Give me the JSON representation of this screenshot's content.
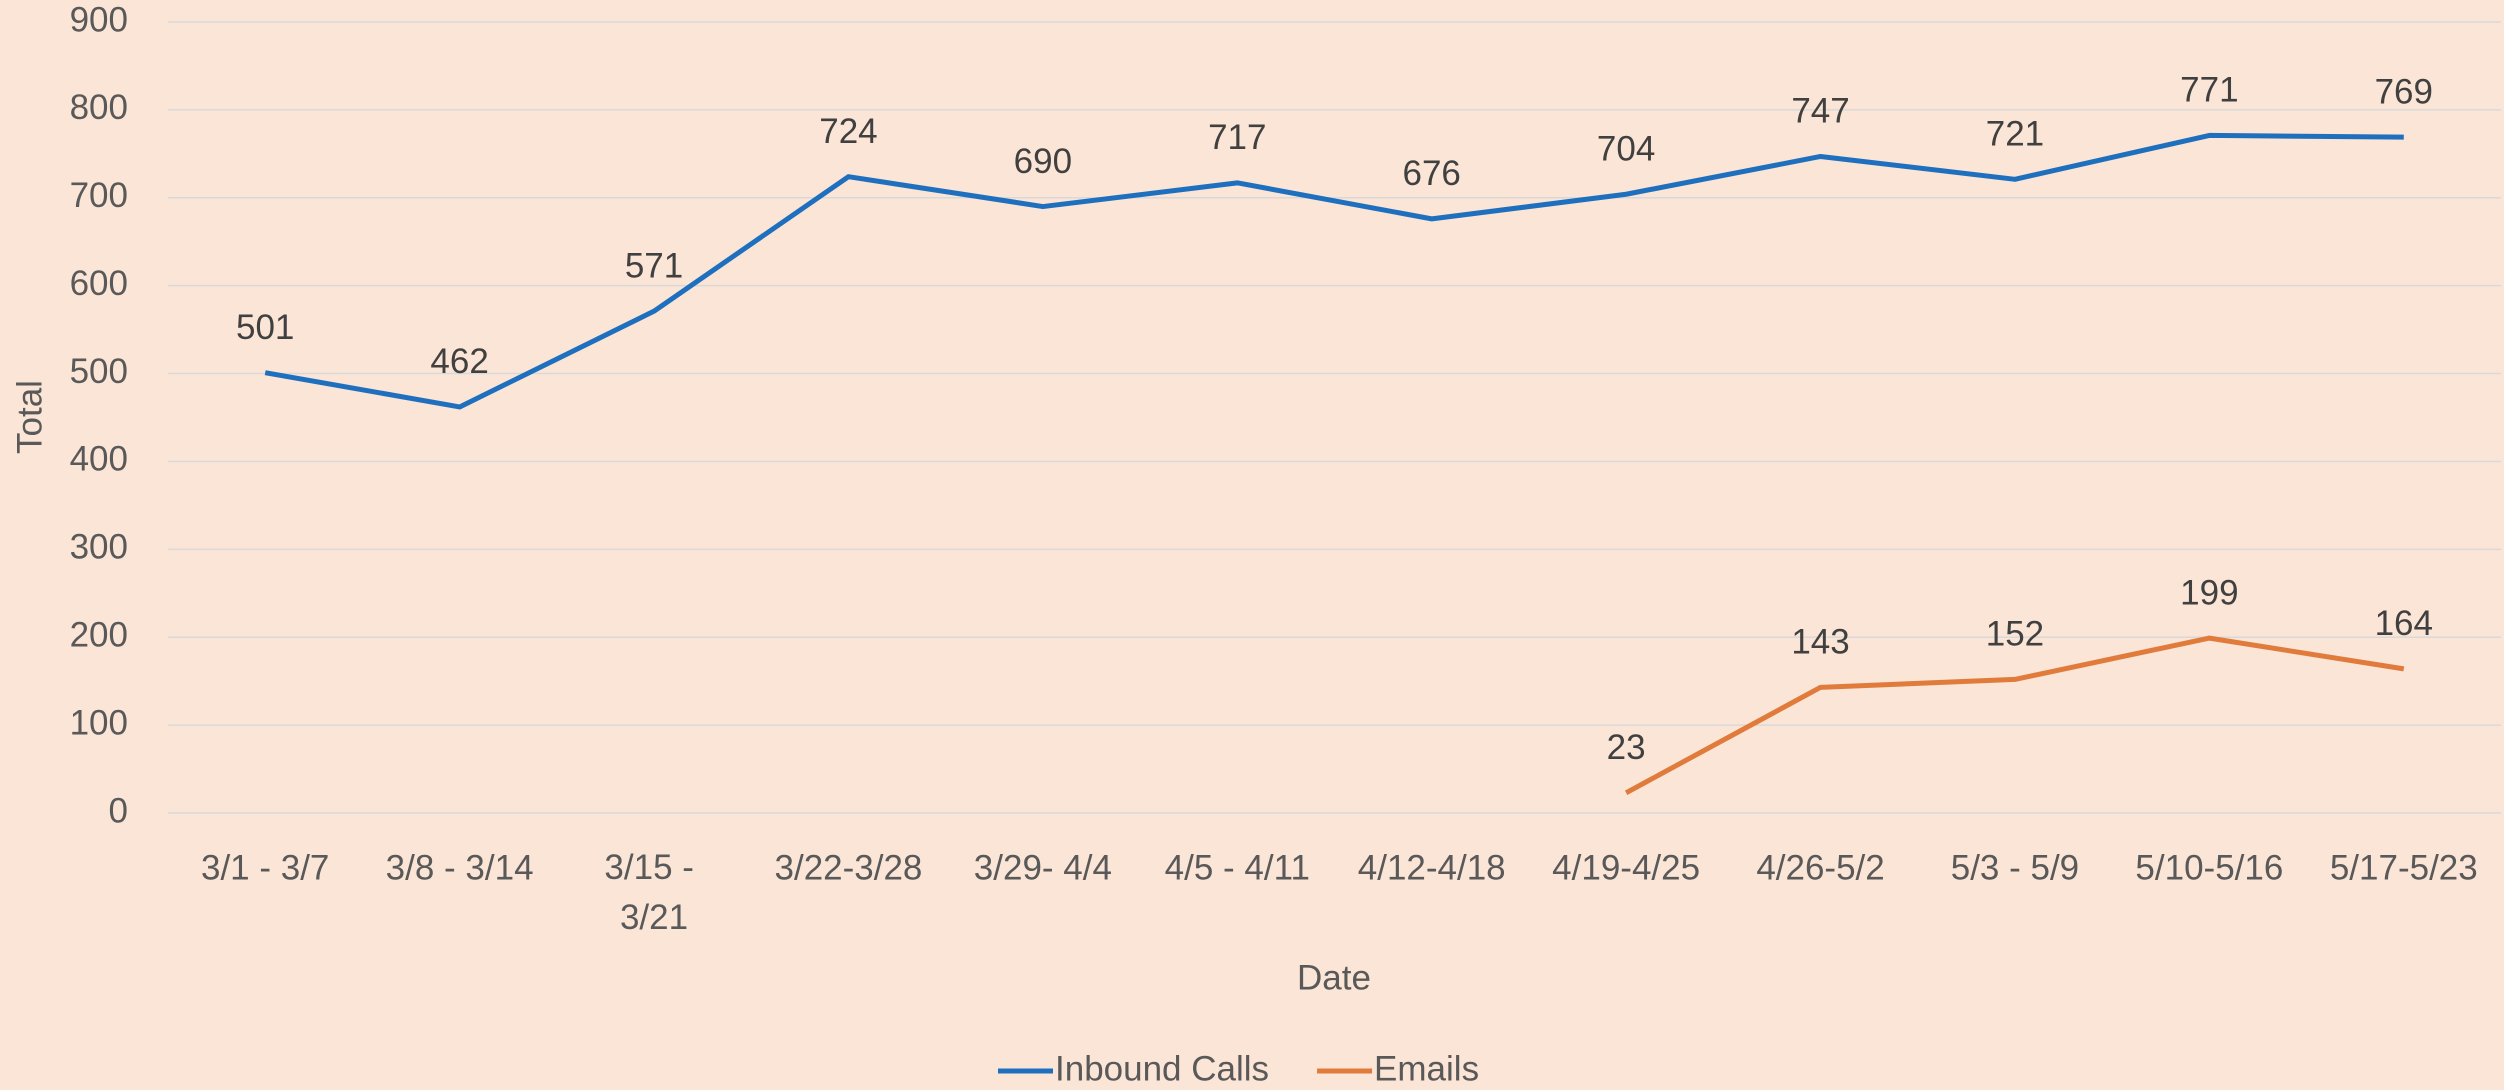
{
  "chart_data": {
    "type": "line",
    "x_label": "Date",
    "y_label": "Total",
    "categories": [
      "3/1 - 3/7",
      "3/8 - 3/14",
      "3/15 - 3/21",
      "3/22-3/28",
      "3/29- 4/4",
      "4/5 - 4/11",
      "4/12-4/18",
      "4/19-4/25",
      "4/26-5/2",
      "5/3 - 5/9",
      "5/10-5/16",
      "5/17-5/23"
    ],
    "series": [
      {
        "name": "Inbound Calls",
        "color": "#1f6fbf",
        "values": [
          501,
          462,
          571,
          724,
          690,
          717,
          676,
          704,
          747,
          721,
          771,
          769
        ]
      },
      {
        "name": "Emails",
        "color": "#e07b3c",
        "values": [
          null,
          null,
          null,
          null,
          null,
          null,
          null,
          23,
          143,
          152,
          199,
          164
        ]
      }
    ],
    "ylim": [
      0,
      900
    ],
    "yticks": [
      0,
      100,
      200,
      300,
      400,
      500,
      600,
      700,
      800,
      900
    ],
    "grid": true,
    "legend": "bottom"
  }
}
